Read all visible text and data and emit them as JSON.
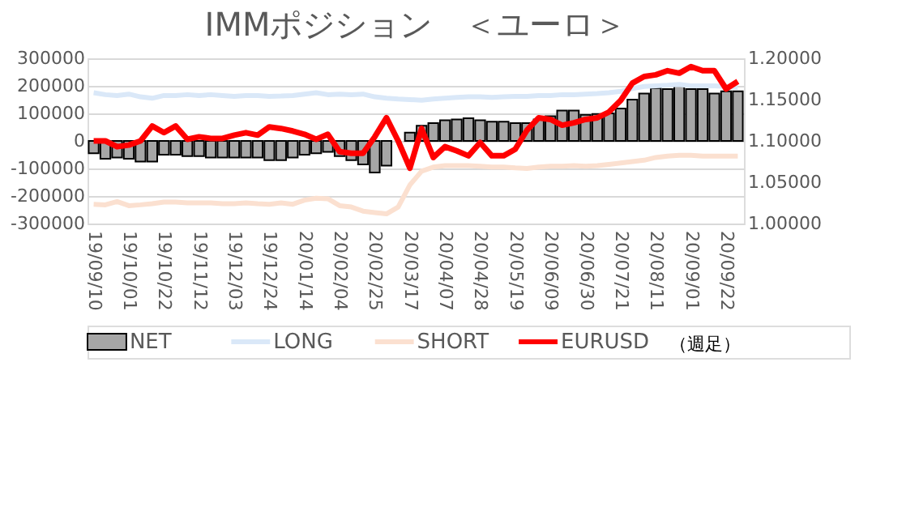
{
  "chart_data": {
    "type": "bar",
    "title": "IMMポジション　＜ユーロ＞",
    "categories": [
      "19/09/10",
      null,
      null,
      "19/10/01",
      null,
      null,
      "19/10/22",
      null,
      null,
      "19/11/12",
      null,
      null,
      "19/12/03",
      null,
      null,
      "19/12/24",
      null,
      null,
      "20/01/14",
      null,
      null,
      "20/02/04",
      null,
      null,
      "20/02/25",
      null,
      null,
      "20/03/17",
      null,
      null,
      "20/04/07",
      null,
      null,
      "20/04/28",
      null,
      null,
      "20/05/19",
      null,
      null,
      "20/06/09",
      null,
      null,
      "20/06/30",
      null,
      null,
      "20/07/21",
      null,
      null,
      "20/08/11",
      null,
      null,
      "20/09/01",
      null,
      null,
      "20/09/22",
      null
    ],
    "series": [
      {
        "name": "NET",
        "color": "#a6a6a6",
        "values": [
          -45000,
          -65000,
          -60000,
          -65000,
          -75000,
          -75000,
          -50000,
          -50000,
          -55000,
          -55000,
          -60000,
          -60000,
          -60000,
          -60000,
          -60000,
          -70000,
          -70000,
          -60000,
          -50000,
          -45000,
          -40000,
          -55000,
          -70000,
          -85000,
          -115000,
          -90000,
          null,
          30000,
          55000,
          65000,
          75000,
          78000,
          82000,
          75000,
          70000,
          70000,
          65000,
          65000,
          78000,
          90000,
          110000,
          110000,
          95000,
          98000,
          100000,
          118000,
          150000,
          172000,
          192000,
          188000,
          205000,
          188000,
          188000,
          172000,
          180000,
          180000
        ]
      },
      {
        "name": "LONG",
        "type": "line",
        "color": "#dae8f8",
        "values": [
          175000,
          168000,
          165000,
          170000,
          160000,
          155000,
          165000,
          165000,
          168000,
          165000,
          168000,
          165000,
          162000,
          165000,
          165000,
          162000,
          163000,
          165000,
          170000,
          175000,
          168000,
          170000,
          168000,
          170000,
          160000,
          155000,
          152000,
          150000,
          148000,
          152000,
          155000,
          158000,
          160000,
          160000,
          158000,
          160000,
          162000,
          162000,
          165000,
          165000,
          168000,
          168000,
          170000,
          172000,
          175000,
          180000,
          190000,
          198000,
          200000,
          202000,
          205000,
          200000,
          200000,
          200000,
          198000,
          195000
        ]
      },
      {
        "name": "SHORT",
        "type": "line",
        "color": "#fbe0d0",
        "values": [
          -230000,
          -232000,
          -220000,
          -235000,
          -232000,
          -228000,
          -222000,
          -222000,
          -225000,
          -225000,
          -225000,
          -228000,
          -228000,
          -225000,
          -228000,
          -230000,
          -225000,
          -230000,
          -215000,
          -208000,
          -210000,
          -235000,
          -240000,
          -255000,
          -260000,
          -265000,
          -240000,
          -160000,
          -110000,
          -95000,
          -90000,
          -90000,
          -90000,
          -92000,
          -95000,
          -95000,
          -98000,
          -100000,
          -95000,
          -92000,
          -92000,
          -90000,
          -92000,
          -90000,
          -85000,
          -80000,
          -75000,
          -70000,
          -60000,
          -55000,
          -52000,
          -52000,
          -55000,
          -55000,
          -55000,
          -55000
        ]
      },
      {
        "name": "EURUSD",
        "type": "line",
        "axis": "y2",
        "color": "#ff0000",
        "values": [
          1.1,
          1.1,
          1.093,
          1.095,
          1.1,
          1.118,
          1.11,
          1.118,
          1.102,
          1.105,
          1.103,
          1.103,
          1.107,
          1.11,
          1.107,
          1.117,
          1.115,
          1.112,
          1.108,
          1.102,
          1.108,
          1.087,
          1.085,
          1.085,
          1.105,
          1.128,
          1.1,
          1.067,
          1.115,
          1.08,
          1.093,
          1.088,
          1.082,
          1.098,
          1.082,
          1.082,
          1.09,
          1.113,
          1.128,
          1.126,
          1.119,
          1.122,
          1.126,
          1.128,
          1.135,
          1.149,
          1.17,
          1.178,
          1.18,
          1.185,
          1.182,
          1.19,
          1.185,
          1.185,
          1.163,
          1.172
        ]
      }
    ],
    "ylim": [
      -300000,
      300000
    ],
    "yticks": [
      -300000,
      -200000,
      -100000,
      0,
      100000,
      200000,
      300000
    ],
    "y2lim": [
      1.0,
      1.2
    ],
    "y2ticks": [
      {
        "value": 1.0,
        "label": "1.00000"
      },
      {
        "value": 1.05,
        "label": "1.05000"
      },
      {
        "value": 1.1,
        "label": "1.10000"
      },
      {
        "value": 1.15,
        "label": "1.15000"
      },
      {
        "value": 1.2,
        "label": "1.20000"
      }
    ],
    "annotations": [
      "（週足）"
    ],
    "grid": "y",
    "legend": "bottom"
  }
}
